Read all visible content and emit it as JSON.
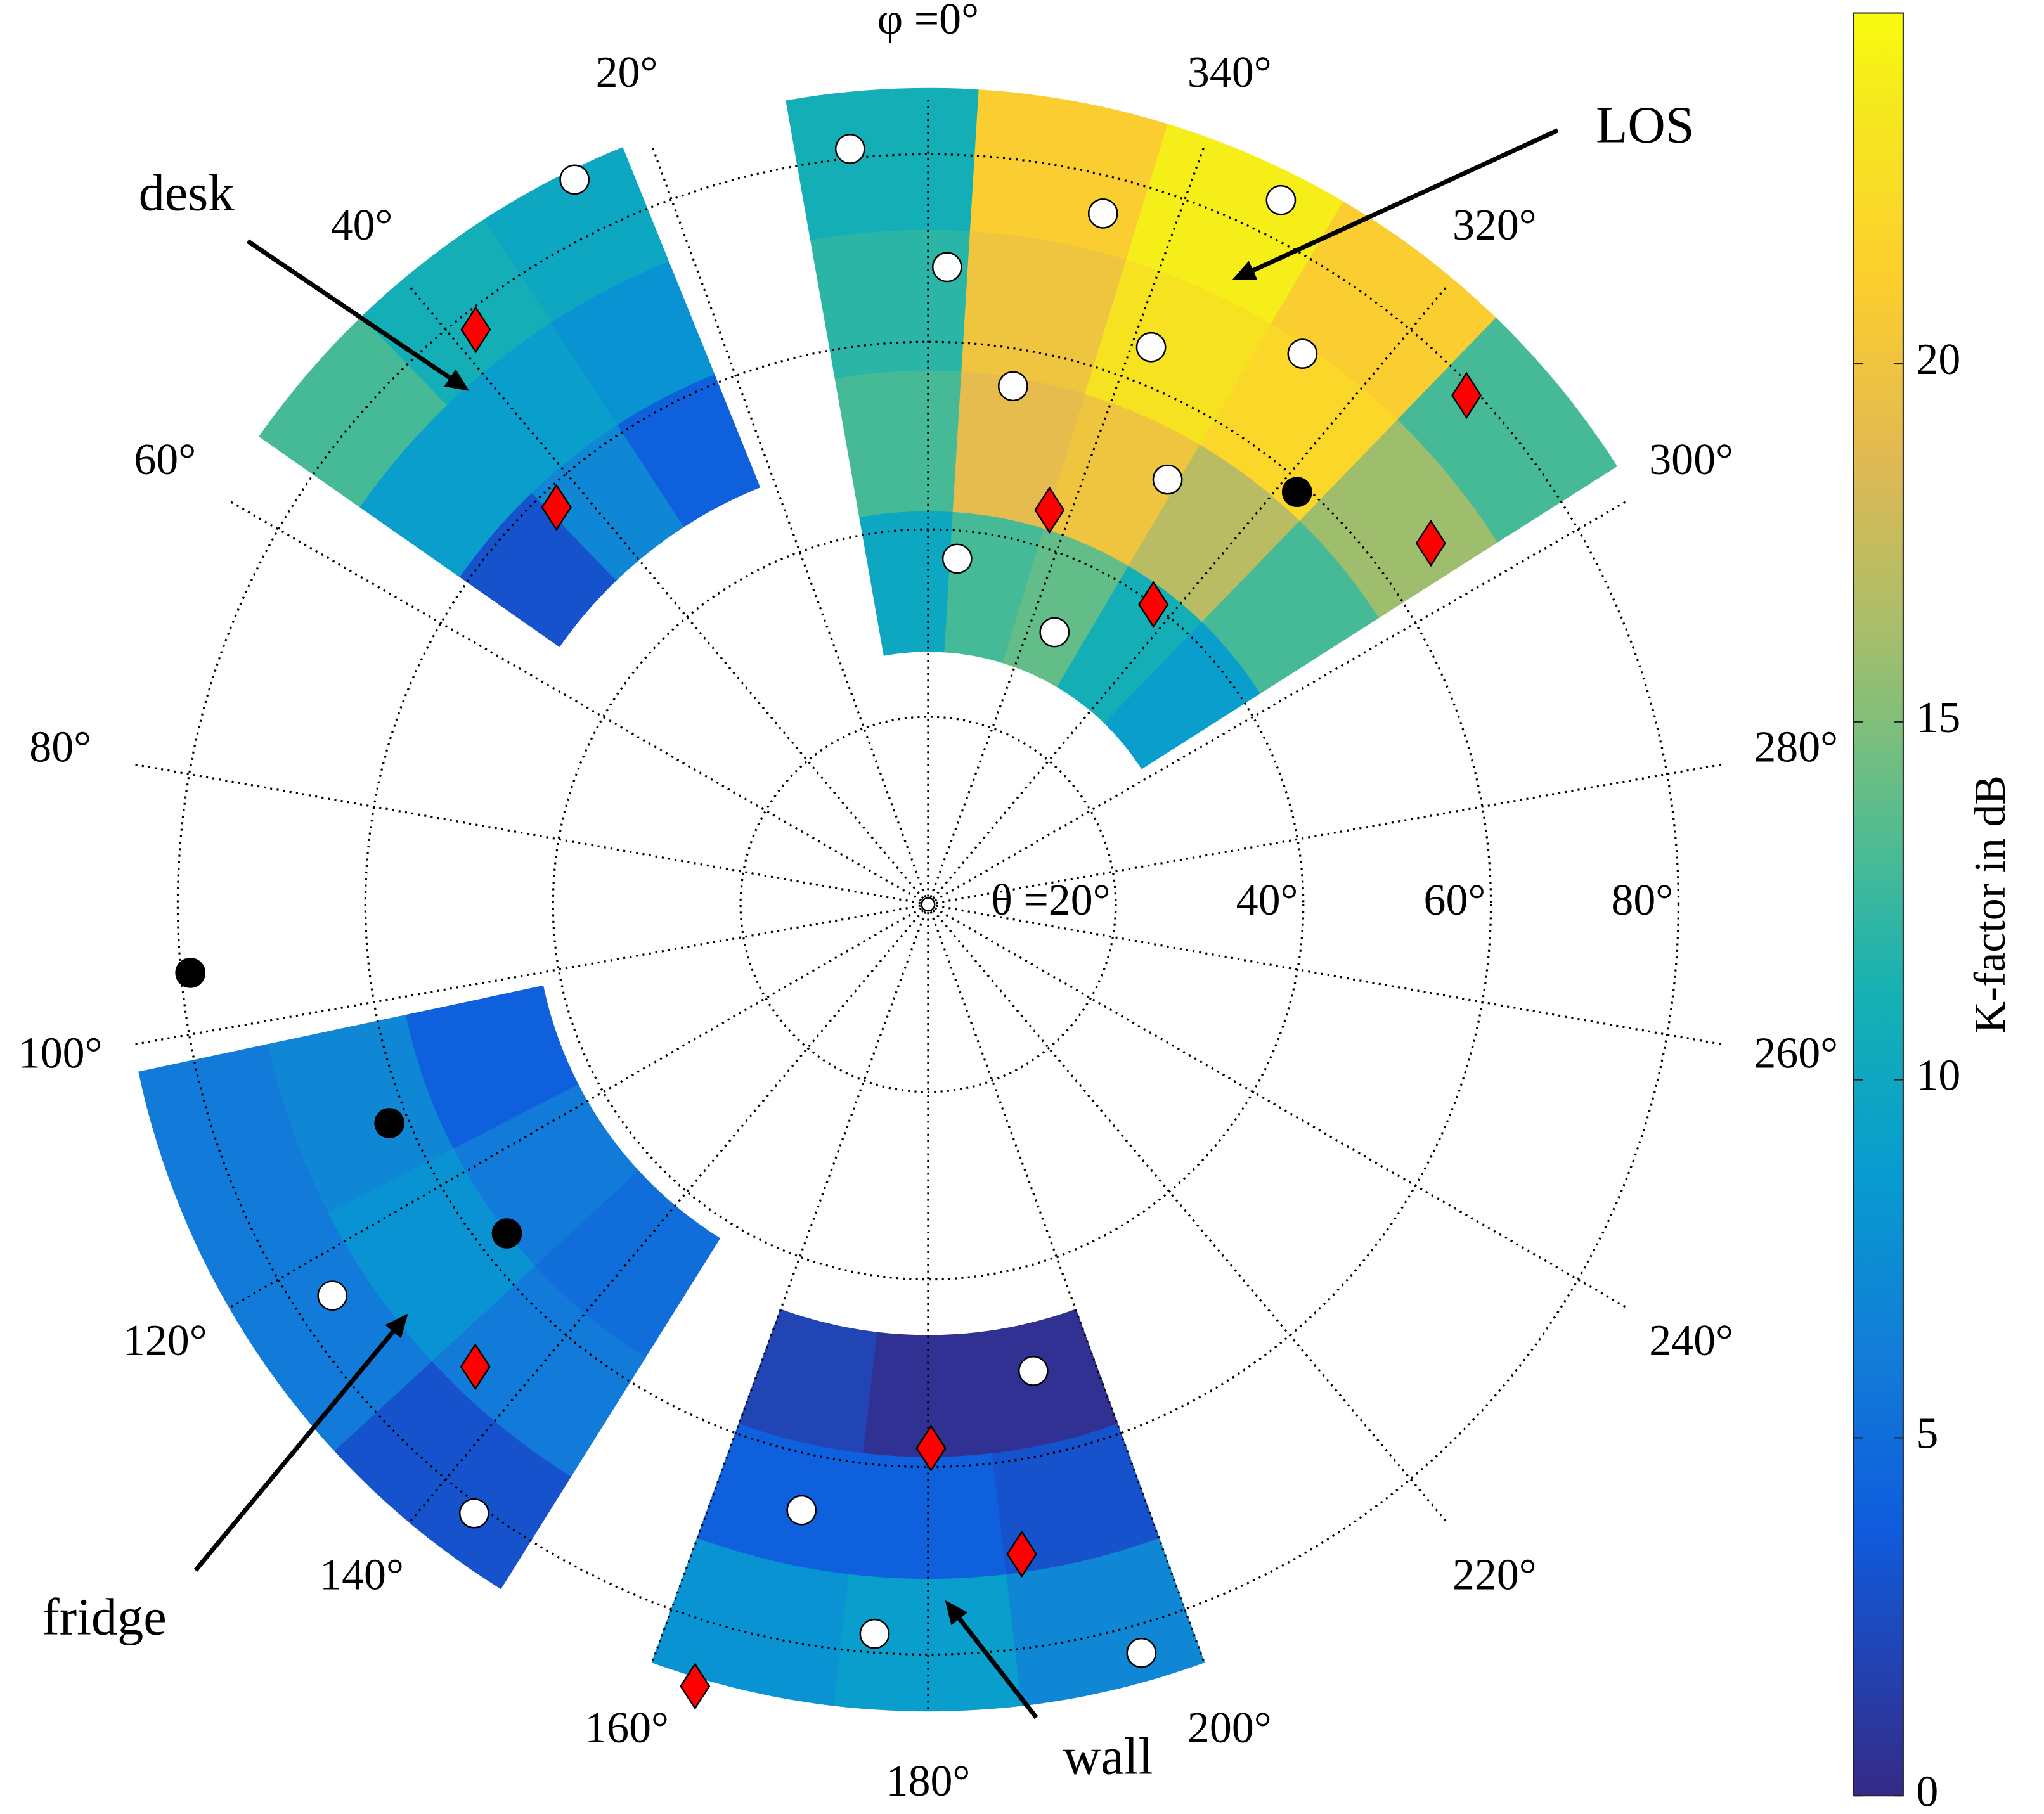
{
  "chart_data": {
    "type": "polar-heatmap",
    "rlim": [
      0,
      87
    ],
    "phiticks": [
      {
        "value": 0,
        "label": "φ =0°"
      },
      {
        "value": 20,
        "label": "20°"
      },
      {
        "value": 40,
        "label": "40°"
      },
      {
        "value": 60,
        "label": "60°"
      },
      {
        "value": 80,
        "label": "80°"
      },
      {
        "value": 100,
        "label": "100°"
      },
      {
        "value": 120,
        "label": "120°"
      },
      {
        "value": 140,
        "label": "140°"
      },
      {
        "value": 160,
        "label": "160°"
      },
      {
        "value": 180,
        "label": "180°"
      },
      {
        "value": 200,
        "label": "200°"
      },
      {
        "value": 220,
        "label": "220°"
      },
      {
        "value": 240,
        "label": "240°"
      },
      {
        "value": 260,
        "label": "260°"
      },
      {
        "value": 280,
        "label": "280°"
      },
      {
        "value": 300,
        "label": "300°"
      },
      {
        "value": 320,
        "label": "320°"
      },
      {
        "value": 340,
        "label": "340°"
      }
    ],
    "thetaticks": [
      {
        "value": 20,
        "label": "θ =20°"
      },
      {
        "value": 40,
        "label": "40°"
      },
      {
        "value": 60,
        "label": "60°"
      },
      {
        "value": 80,
        "label": "80°"
      }
    ],
    "regions": [
      {
        "phi_edges": [
          302.5,
          316,
          329.5,
          343,
          356.5,
          370
        ],
        "theta_edges": [
          27,
          42,
          57,
          72,
          87
        ],
        "values": [
          [
            9,
            11,
            14,
            13,
            10
          ],
          [
            13,
            17,
            20,
            19,
            13
          ],
          [
            16,
            22,
            23,
            20,
            12
          ],
          [
            13,
            21,
            24,
            21,
            11
          ]
        ]
      },
      {
        "phi_edges": [
          22,
          33,
          44,
          55
        ],
        "theta_edges": [
          48,
          61,
          74,
          87
        ],
        "values": [
          [
            4,
            7,
            3
          ],
          [
            8,
            9,
            9
          ],
          [
            10,
            11,
            13
          ]
        ]
      },
      {
        "phi_edges": [
          102,
          117.3,
          132.7,
          148
        ],
        "theta_edges": [
          42,
          57,
          72,
          86
        ],
        "values": [
          [
            4,
            6,
            5
          ],
          [
            7,
            8,
            6
          ],
          [
            6,
            6,
            3
          ]
        ]
      },
      {
        "phi_edges": [
          160,
          173.3,
          186.7,
          200
        ],
        "theta_edges": [
          46,
          59,
          72,
          86
        ],
        "values": [
          [
            2,
            0.5,
            0.5
          ],
          [
            4,
            4,
            3
          ],
          [
            8,
            9,
            7
          ]
        ]
      }
    ],
    "series": [
      {
        "marker": "circle",
        "color": "#ffffff",
        "phi": [
          5.9,
          26,
          345.8,
          333.4,
          358.3,
          338.2,
          325.8,
          350.7,
          330.6,
          355.2,
          335.1,
          123.3,
          143.3,
          192.7,
          168.2,
          175.8,
          195.9
        ],
        "theta": [
          81,
          86,
          76,
          84,
          68,
          64,
          71,
          56,
          52,
          37,
          32,
          76,
          81,
          51,
          66,
          78,
          83
        ]
      },
      {
        "marker": "circle",
        "color": "#000000",
        "phi": [
          318.2,
          95.3,
          112.1,
          128
        ],
        "theta": [
          59,
          79,
          62,
          57
        ]
      },
      {
        "marker": "diamond",
        "color": "#ff0000",
        "phi": [
          38.2,
          43.1,
          313.4,
          342.9,
          305.7,
          323.1,
          135.6,
          180.3,
          188.2,
          163.4
        ],
        "theta": [
          78,
          58,
          79,
          44,
          66,
          40,
          69,
          58,
          70,
          87
        ]
      }
    ],
    "clim": [
      0,
      24.9
    ],
    "cticks": [
      0,
      5,
      10,
      15,
      20
    ],
    "colorbar_label": "K-factor in dB",
    "annotations": [
      "LOS",
      "desk",
      "fridge",
      "wall"
    ]
  }
}
